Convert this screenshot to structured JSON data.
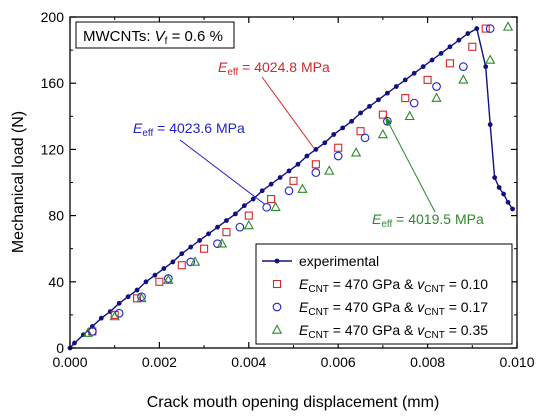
{
  "chart_data": {
    "type": "scatter",
    "xlabel": "Crack mouth opening displacement (mm)",
    "ylabel": "Mechanical load (N)",
    "xlim": [
      0,
      0.01
    ],
    "ylim": [
      0,
      200
    ],
    "x_ticks": [
      "0.000",
      "0.002",
      "0.004",
      "0.006",
      "0.008",
      "0.010"
    ],
    "y_ticks": [
      "0",
      "40",
      "80",
      "120",
      "160",
      "200"
    ],
    "grid": false,
    "legend_position": "bottom-right",
    "info_box": {
      "prefix": "MWCNTs: ",
      "var": "V",
      "sub": "f",
      "suffix": " = 0.6 %"
    },
    "annotations": [
      {
        "var": "E",
        "sub": "eff",
        "text": " = 4024.8 MPa",
        "color": "#d62728",
        "target": [
          0.00545,
          121
        ]
      },
      {
        "var": "E",
        "sub": "eff",
        "text": " = 4023.6 MPa",
        "color": "#1f1fd0",
        "target": [
          0.00435,
          87
        ]
      },
      {
        "var": "E",
        "sub": "eff",
        "text": " = 4019.5 MPa",
        "color": "#2a8a2a",
        "target": [
          0.00705,
          140
        ]
      }
    ],
    "series": [
      {
        "name": "experimental",
        "label_parts": [
          {
            "t": "experimental"
          }
        ],
        "marker": "dot-line",
        "color": "#101080",
        "x": [
          0.0,
          0.0001,
          0.0003,
          0.0005,
          0.0007,
          0.0009,
          0.0011,
          0.0013,
          0.0015,
          0.0017,
          0.0019,
          0.0021,
          0.0023,
          0.0025,
          0.0027,
          0.0029,
          0.0031,
          0.0033,
          0.0035,
          0.0037,
          0.0039,
          0.0041,
          0.0043,
          0.0045,
          0.0047,
          0.0049,
          0.0051,
          0.0053,
          0.0055,
          0.0057,
          0.0059,
          0.0061,
          0.0063,
          0.0065,
          0.0067,
          0.0069,
          0.0071,
          0.0073,
          0.0075,
          0.0077,
          0.0079,
          0.0081,
          0.0083,
          0.0085,
          0.0087,
          0.0089,
          0.0091,
          0.0093,
          0.0094,
          0.0095,
          0.0096,
          0.0097,
          0.0098,
          0.0099
        ],
        "y": [
          0,
          3,
          8,
          13,
          18,
          22,
          27,
          31,
          35,
          40,
          44,
          48,
          52,
          57,
          61,
          65,
          69,
          73,
          77,
          81,
          86,
          90,
          95,
          99,
          103,
          107,
          111,
          116,
          120,
          124,
          129,
          133,
          137,
          142,
          146,
          150,
          154,
          158,
          162,
          166,
          170,
          174,
          178,
          182,
          186,
          190,
          193,
          170,
          135,
          103,
          97,
          93,
          88,
          84
        ]
      },
      {
        "name": "E_CNT = 470 GPa & v_CNT = 0.10",
        "label_parts": [
          {
            "t": "E",
            "i": true
          },
          {
            "t": "CNT",
            "sub": true
          },
          {
            "t": " = 470 GPa & "
          },
          {
            "t": "v",
            "i": true
          },
          {
            "t": "CNT",
            "sub": true
          },
          {
            "t": " = 0.10"
          }
        ],
        "marker": "square",
        "color": "#d62728",
        "x": [
          0.0005,
          0.001,
          0.0015,
          0.002,
          0.0025,
          0.003,
          0.0035,
          0.004,
          0.0045,
          0.005,
          0.0055,
          0.006,
          0.0065,
          0.007,
          0.0075,
          0.008,
          0.0085,
          0.009,
          0.0093
        ],
        "y": [
          10,
          20,
          30,
          40,
          50,
          60,
          70,
          80,
          90,
          101,
          111,
          121,
          131,
          141,
          151,
          162,
          172,
          182,
          193
        ]
      },
      {
        "name": "E_CNT = 470 GPa & v_CNT = 0.17",
        "label_parts": [
          {
            "t": "E",
            "i": true
          },
          {
            "t": "CNT",
            "sub": true
          },
          {
            "t": " = 470 GPa & "
          },
          {
            "t": "v",
            "i": true
          },
          {
            "t": "CNT",
            "sub": true
          },
          {
            "t": " = 0.17"
          }
        ],
        "marker": "circle",
        "color": "#1f1fd0",
        "x": [
          0.0005,
          0.0011,
          0.0016,
          0.0022,
          0.0027,
          0.0033,
          0.0038,
          0.0044,
          0.0049,
          0.0055,
          0.006,
          0.0066,
          0.0071,
          0.0077,
          0.0082,
          0.0088,
          0.0094
        ],
        "y": [
          10,
          21,
          31,
          42,
          52,
          63,
          73,
          85,
          95,
          106,
          116,
          127,
          137,
          148,
          158,
          170,
          193
        ]
      },
      {
        "name": "E_CNT = 470 GPa & v_CNT = 0.35",
        "label_parts": [
          {
            "t": "E",
            "i": true
          },
          {
            "t": "CNT",
            "sub": true
          },
          {
            "t": " = 470 GPa & "
          },
          {
            "t": "v",
            "i": true
          },
          {
            "t": "CNT",
            "sub": true
          },
          {
            "t": " = 0.35"
          }
        ],
        "marker": "triangle",
        "color": "#2a8a2a",
        "x": [
          0.0004,
          0.001,
          0.0016,
          0.0022,
          0.0028,
          0.0034,
          0.004,
          0.0046,
          0.0052,
          0.0058,
          0.0064,
          0.007,
          0.0076,
          0.0082,
          0.0088,
          0.0094,
          0.0098
        ],
        "y": [
          9,
          19,
          30,
          41,
          52,
          63,
          74,
          85,
          96,
          107,
          118,
          129,
          140,
          151,
          162,
          174,
          194
        ]
      }
    ]
  }
}
